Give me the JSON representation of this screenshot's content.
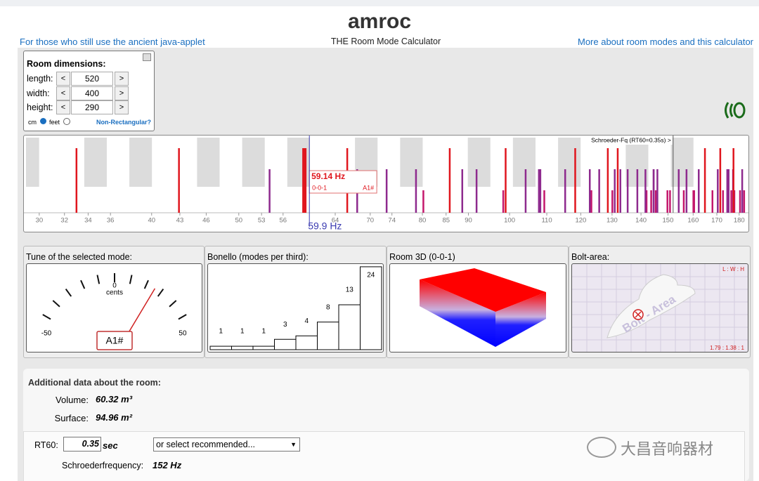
{
  "header": {
    "title": "amroc",
    "subtitle": "THE Room Mode Calculator",
    "left_link": "For those who still use the ancient java-applet",
    "right_link": "More about room modes and this calculator"
  },
  "dimensions": {
    "title": "Room dimensions:",
    "decrement": "<",
    "increment": ">",
    "rows": [
      {
        "label": "length:",
        "value": 520
      },
      {
        "label": "width:",
        "value": 400
      },
      {
        "label": "height:",
        "value": 290
      }
    ],
    "unit_cm": "cm",
    "unit_feet": "feet",
    "non_rect": "Non-Rectangular?"
  },
  "spectrum": {
    "xlim": [
      29,
      184
    ],
    "log_x": true,
    "xticks": [
      30,
      32,
      34,
      36,
      40,
      43,
      46,
      50,
      53,
      56,
      64,
      70,
      74,
      80,
      85,
      90,
      100,
      110,
      120,
      130,
      140,
      150,
      160,
      170,
      180
    ],
    "axial_color": "#e0161e",
    "tangential_color": "#8e2a8e",
    "oblique_color": "#c4176c",
    "axial_modes": [
      33.0,
      66.0,
      99.0,
      131.9,
      164.9,
      42.9,
      85.8,
      128.6,
      171.5,
      59.1,
      118.3,
      177.4
    ],
    "tangential_modes": [
      54.1,
      78.7,
      91.9,
      107.8,
      108.2,
      130.9,
      138.7,
      132.8,
      144.6,
      157.3,
      162.3,
      170.4,
      174.6,
      67.7,
      88.6,
      115.3,
      122.8,
      135.3,
      144.6,
      154.2,
      175.2,
      177.2,
      73.0,
      104.2,
      125.8,
      141.6,
      146.0,
      174.7,
      181.4
    ],
    "oblique_modes": [
      80.2,
      98.4,
      109.3,
      123.0,
      123.3,
      130.1,
      142.0,
      143.7,
      145.4,
      150.8,
      149.8,
      156.2,
      160.4,
      160.1,
      168.1,
      172.7,
      176.4,
      177.8,
      180.4,
      182.3
    ],
    "schroeder": {
      "value": 152,
      "label": "Schroeder-Fq (RT60=0.35s) >"
    },
    "selected": {
      "value": 59.14,
      "label": "59.14 Hz",
      "mode": "0-0-1",
      "note": "A1#"
    },
    "cursor": {
      "value": 59.9,
      "label": "59.9 Hz"
    }
  },
  "panels": {
    "tune": {
      "title": "Tune of the selected mode:",
      "ticks": [
        -50,
        -40,
        -30,
        -20,
        -10,
        0,
        10,
        20,
        30,
        40,
        50
      ],
      "tick_labels": [
        -50,
        0,
        50
      ],
      "unit": "cents",
      "range": [
        -50,
        50
      ],
      "needle": 25.7,
      "note": "A1#"
    },
    "bonello": {
      "title": "Bonello (modes per third):",
      "values": [
        1,
        1,
        1,
        3,
        4,
        8,
        13,
        24
      ],
      "ylim": [
        0,
        25
      ]
    },
    "room3d": {
      "title": "Room 3D (0-0-1)"
    },
    "bolt": {
      "title": "Bolt-area:",
      "ratio_label": "L : W : H",
      "ratio": "1.79 : 1.38 : 1",
      "watermark": "Bolt - Area"
    }
  },
  "room_data": {
    "title": "Additional data about the room:",
    "volume_label": "Volume:",
    "volume": "60.32 m³",
    "surface_label": "Surface:",
    "surface": "94.96 m²",
    "rt60_label": "RT60:",
    "rt60": 0.35,
    "rt60_unit": "sec",
    "select": "or select recommended...",
    "schroeder_label": "Schroederfrequency:",
    "schroeder": "152 Hz"
  },
  "watermark": "大昌音响器材"
}
